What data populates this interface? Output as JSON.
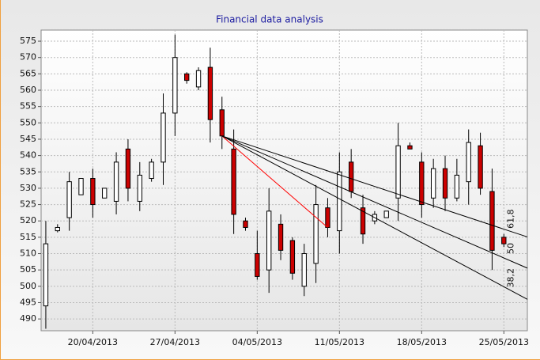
{
  "chart_data": {
    "type": "candlestick",
    "title": "Financial data analysis",
    "categories": [
      null,
      null,
      null,
      null,
      "20/04/2013",
      null,
      null,
      null,
      null,
      null,
      null,
      "27/04/2013",
      null,
      null,
      null,
      null,
      null,
      null,
      "04/05/2013",
      null,
      null,
      null,
      null,
      null,
      null,
      "11/05/2013",
      null,
      null,
      null,
      null,
      null,
      null,
      "18/05/2013",
      null,
      null,
      null,
      null,
      null,
      null,
      "25/05/2013"
    ],
    "open": [
      494,
      517,
      521,
      528,
      533,
      527,
      526,
      542,
      526,
      533,
      538,
      553,
      565,
      561,
      567,
      554,
      542,
      520,
      510,
      505,
      519,
      514,
      500,
      507,
      524,
      517,
      538,
      524,
      520,
      521,
      527,
      543,
      538,
      527,
      536,
      527,
      532,
      543,
      529,
      515
    ],
    "high": [
      520,
      519,
      535,
      533,
      536,
      530,
      541,
      545,
      538,
      539,
      559,
      577,
      565.5,
      567,
      573,
      558,
      548,
      521,
      517,
      530,
      522,
      515,
      513,
      531,
      527,
      541,
      542,
      528,
      523,
      523,
      550,
      544,
      541,
      539,
      540,
      539,
      548,
      547,
      536,
      516
    ],
    "low": [
      487,
      516.5,
      517,
      528,
      521,
      527,
      522,
      526,
      523,
      532,
      531,
      546,
      562,
      560,
      544,
      542,
      516,
      517,
      502,
      498,
      508,
      502,
      497,
      501,
      515,
      510,
      527,
      513,
      519,
      521,
      520,
      542,
      521,
      524,
      523,
      526,
      525,
      528,
      505,
      512
    ],
    "close": [
      513,
      518,
      532,
      533,
      525,
      530,
      538,
      530,
      534,
      538,
      553,
      570,
      563,
      566,
      551,
      546,
      522,
      518,
      503,
      523,
      511,
      504,
      510,
      525,
      518,
      535,
      529,
      516,
      522,
      523,
      543,
      542,
      525,
      536,
      527,
      534,
      544,
      530,
      511,
      513
    ],
    "up_color": "#ffffff",
    "down_color": "#cc0000",
    "ylim": [
      486.4,
      578.4
    ],
    "yticks": [
      490,
      495,
      500,
      505,
      510,
      515,
      520,
      525,
      530,
      535,
      540,
      545,
      550,
      555,
      560,
      565,
      570,
      575
    ],
    "grid": true,
    "fan": {
      "from": {
        "index": 15,
        "price": 546
      },
      "to": {
        "index": 24,
        "price": 518
      },
      "base_color": "#ff0000",
      "line_color": "#000000",
      "levels": [
        {
          "value": 61.8,
          "label": "61,8"
        },
        50,
        {
          "value": 38.2,
          "label": "38,2"
        }
      ]
    }
  }
}
